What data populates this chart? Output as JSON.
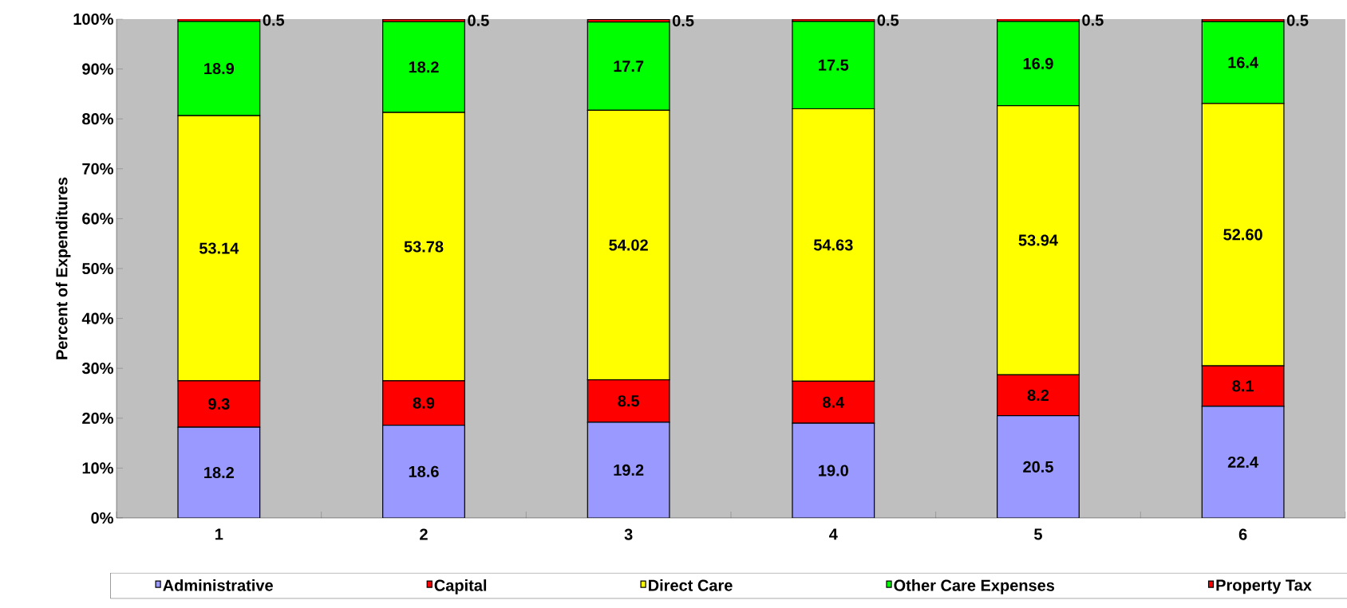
{
  "chart_data": {
    "type": "bar",
    "stacked": true,
    "ylabel": "Percent of Expenditures",
    "categories": [
      "1",
      "2",
      "3",
      "4",
      "5",
      "6"
    ],
    "series": [
      {
        "name": "Administrative",
        "color": "#9999ff",
        "values": [
          18.2,
          18.6,
          19.2,
          19.0,
          20.5,
          22.4
        ],
        "value_labels": [
          "18.2",
          "18.6",
          "19.2",
          "19.0",
          "20.5",
          "22.4"
        ]
      },
      {
        "name": "Capital",
        "color": "#ff0000",
        "values": [
          9.3,
          8.9,
          8.5,
          8.4,
          8.2,
          8.1
        ],
        "value_labels": [
          "9.3",
          "8.9",
          "8.5",
          "8.4",
          "8.2",
          "8.1"
        ]
      },
      {
        "name": "Direct Care",
        "color": "#ffff00",
        "values": [
          53.14,
          53.78,
          54.02,
          54.63,
          53.94,
          52.6
        ],
        "value_labels": [
          "53.14",
          "53.78",
          "54.02",
          "54.63",
          "53.94",
          "52.60"
        ]
      },
      {
        "name": "Other Care Expenses",
        "color": "#00ff00",
        "values": [
          18.9,
          18.2,
          17.7,
          17.5,
          16.9,
          16.4
        ],
        "value_labels": [
          "18.9",
          "18.2",
          "17.7",
          "17.5",
          "16.9",
          "16.4"
        ]
      },
      {
        "name": "Property Tax",
        "color": "#ff0000",
        "values": [
          0.5,
          0.5,
          0.5,
          0.5,
          0.5,
          0.5
        ],
        "value_labels": [
          "0.5",
          "0.5",
          "0.5",
          "0.5",
          "0.5",
          "0.5"
        ]
      }
    ],
    "ylim": [
      0,
      100
    ],
    "yticks": [
      {
        "value": 0,
        "label": "0%"
      },
      {
        "value": 10,
        "label": "10%"
      },
      {
        "value": 20,
        "label": "20%"
      },
      {
        "value": 30,
        "label": "30%"
      },
      {
        "value": 40,
        "label": "40%"
      },
      {
        "value": 50,
        "label": "50%"
      },
      {
        "value": 60,
        "label": "60%"
      },
      {
        "value": 70,
        "label": "70%"
      },
      {
        "value": 80,
        "label": "80%"
      },
      {
        "value": 90,
        "label": "90%"
      },
      {
        "value": 100,
        "label": "100%"
      }
    ],
    "legend": "bottom"
  }
}
